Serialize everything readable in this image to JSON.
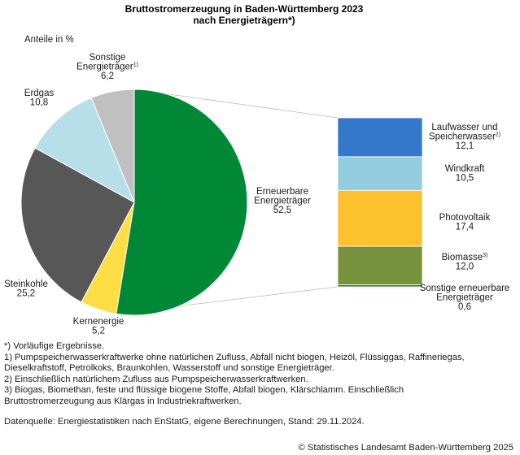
{
  "chart_data": {
    "type": "pie",
    "title_line1": "Bruttostromerzeugung in Baden-Württemberg 2023",
    "title_line2": "nach Energieträgern*)",
    "unit_label": "Anteile in %",
    "slices": [
      {
        "label": "Erneuerbare Energieträger",
        "label_lines": [
          "Erneuerbare",
          "Energieträger"
        ],
        "value": 52.5,
        "value_text": "52,5",
        "color": "#008837"
      },
      {
        "label": "Kernenergie",
        "label_lines": [
          "Kernenergie"
        ],
        "value": 5.2,
        "value_text": "5,2",
        "color": "#ffdd44"
      },
      {
        "label": "Steinkohle",
        "label_lines": [
          "Steinkohle"
        ],
        "value": 25.2,
        "value_text": "25,2",
        "color": "#575757"
      },
      {
        "label": "Erdgas",
        "label_lines": [
          "Erdgas"
        ],
        "value": 10.8,
        "value_text": "10,8",
        "color": "#b7dfe9"
      },
      {
        "label": "Sonstige Energieträger",
        "label_lines": [
          "Sonstige",
          "Energieträger"
        ],
        "sup": "1)",
        "value": 6.2,
        "value_text": "6,2",
        "color": "#c0c0c0"
      }
    ],
    "breakdown": {
      "of": "Erneuerbare Energieträger",
      "segments": [
        {
          "label": "Laufwasser und Speicherwasser",
          "label_lines": [
            "Laufwasser und",
            "Speicherwasser"
          ],
          "sup": "2)",
          "value": 12.1,
          "value_text": "12,1",
          "color": "#3478cc"
        },
        {
          "label": "Windkraft",
          "label_lines": [
            "Windkraft"
          ],
          "value": 10.5,
          "value_text": "10,5",
          "color": "#95cde0"
        },
        {
          "label": "Photovoltaik",
          "label_lines": [
            "Photovoltaik"
          ],
          "value": 17.4,
          "value_text": "17,4",
          "color": "#fdc12e"
        },
        {
          "label": "Biomasse",
          "label_lines": [
            "Biomasse"
          ],
          "sup": "3)",
          "value": 12.0,
          "value_text": "12,0",
          "color": "#76923c"
        },
        {
          "label": "Sonstige erneuerbare Energieträger",
          "label_lines": [
            "Sonstige erneuerbare",
            "Energieträger"
          ],
          "value": 0.6,
          "value_text": "0,6",
          "color": "#1f7a3a"
        }
      ]
    }
  },
  "footnotes": [
    "*) Vorläufige Ergebnisse.",
    "1) Pumpspeicherwasserkraftwerke ohne natürlichen Zufluss, Abfall nicht biogen, Heizöl, Flüssiggas, Raffineriegas,\nDieselkraftstoff, Petrolkoks, Braunkohlen, Wasserstoff und sonstige Energieträger.",
    "2) Einschließlich natürlichem Zufluss aus Pumpspeicherwasserkraftwerken.",
    "3) Biogas, Biomethan, feste und flüssige biogene Stoffe, Abfall biogen, Klärschlamm. Einschließlich\nBruttostromerzeugung aus Klärgas in Industriekraftwerken."
  ],
  "source": "Datenquelle: Energiestatistiken nach EnStatG, eigene Berechnungen, Stand: 29.11.2024.",
  "copyright": "© Statistisches Landesamt Baden-Württemberg 2025"
}
